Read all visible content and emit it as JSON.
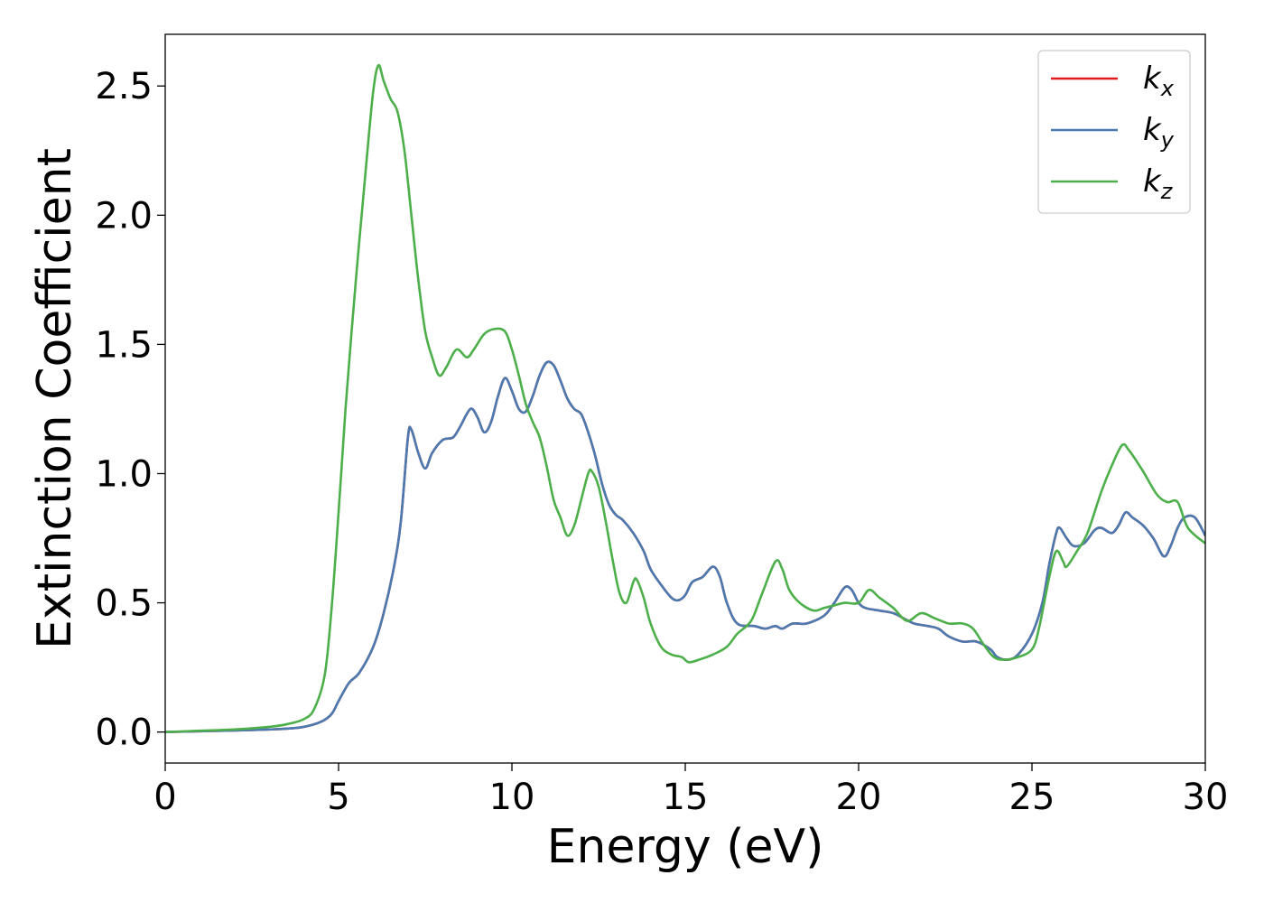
{
  "chart_data": {
    "type": "line",
    "title": "",
    "xlabel": "Energy (eV)",
    "ylabel": "Extinction Coefficient",
    "xlim": [
      0,
      30
    ],
    "ylim": [
      -0.12,
      2.7
    ],
    "xticks": [
      0,
      5,
      10,
      15,
      20,
      25,
      30
    ],
    "xtick_labels": [
      "0",
      "5",
      "10",
      "15",
      "20",
      "25",
      "30"
    ],
    "yticks": [
      0.0,
      0.5,
      1.0,
      1.5,
      2.0,
      2.5
    ],
    "ytick_labels": [
      "0.0",
      "0.5",
      "1.0",
      "1.5",
      "2.0",
      "2.5"
    ],
    "grid": false,
    "legend_position": "top-right",
    "series": [
      {
        "name": "k_x",
        "legend_base": "k",
        "legend_sub": "x",
        "color": "#e41a1c",
        "points": [
          [
            0,
            0
          ],
          [
            1,
            0.003
          ],
          [
            2,
            0.006
          ],
          [
            3,
            0.01
          ],
          [
            3.5,
            0.013
          ],
          [
            4,
            0.02
          ],
          [
            4.5,
            0.04
          ],
          [
            4.8,
            0.07
          ],
          [
            5.0,
            0.12
          ],
          [
            5.3,
            0.19
          ],
          [
            5.6,
            0.23
          ],
          [
            6.0,
            0.33
          ],
          [
            6.3,
            0.46
          ],
          [
            6.6,
            0.64
          ],
          [
            6.8,
            0.82
          ],
          [
            7.0,
            1.14
          ],
          [
            7.1,
            1.17
          ],
          [
            7.3,
            1.08
          ],
          [
            7.5,
            1.02
          ],
          [
            7.7,
            1.08
          ],
          [
            8.0,
            1.13
          ],
          [
            8.3,
            1.14
          ],
          [
            8.5,
            1.18
          ],
          [
            8.8,
            1.25
          ],
          [
            9.0,
            1.22
          ],
          [
            9.2,
            1.16
          ],
          [
            9.4,
            1.2
          ],
          [
            9.6,
            1.3
          ],
          [
            9.8,
            1.37
          ],
          [
            10.0,
            1.32
          ],
          [
            10.2,
            1.25
          ],
          [
            10.4,
            1.24
          ],
          [
            10.6,
            1.3
          ],
          [
            10.8,
            1.38
          ],
          [
            11.0,
            1.43
          ],
          [
            11.2,
            1.42
          ],
          [
            11.4,
            1.36
          ],
          [
            11.6,
            1.29
          ],
          [
            11.8,
            1.25
          ],
          [
            12.0,
            1.23
          ],
          [
            12.2,
            1.16
          ],
          [
            12.4,
            1.07
          ],
          [
            12.6,
            0.96
          ],
          [
            12.8,
            0.88
          ],
          [
            13.0,
            0.84
          ],
          [
            13.2,
            0.82
          ],
          [
            13.5,
            0.77
          ],
          [
            13.8,
            0.7
          ],
          [
            14.0,
            0.63
          ],
          [
            14.3,
            0.57
          ],
          [
            14.6,
            0.52
          ],
          [
            14.8,
            0.51
          ],
          [
            15.0,
            0.53
          ],
          [
            15.2,
            0.58
          ],
          [
            15.5,
            0.6
          ],
          [
            15.8,
            0.64
          ],
          [
            16.0,
            0.6
          ],
          [
            16.2,
            0.5
          ],
          [
            16.5,
            0.42
          ],
          [
            17.0,
            0.41
          ],
          [
            17.3,
            0.4
          ],
          [
            17.6,
            0.41
          ],
          [
            17.8,
            0.4
          ],
          [
            18.1,
            0.42
          ],
          [
            18.5,
            0.42
          ],
          [
            19.0,
            0.45
          ],
          [
            19.3,
            0.5
          ],
          [
            19.6,
            0.56
          ],
          [
            19.8,
            0.55
          ],
          [
            20.0,
            0.5
          ],
          [
            20.2,
            0.48
          ],
          [
            20.6,
            0.47
          ],
          [
            21.0,
            0.46
          ],
          [
            21.3,
            0.44
          ],
          [
            21.6,
            0.42
          ],
          [
            22.0,
            0.41
          ],
          [
            22.3,
            0.4
          ],
          [
            22.6,
            0.37
          ],
          [
            23.0,
            0.35
          ],
          [
            23.4,
            0.35
          ],
          [
            23.8,
            0.32
          ],
          [
            24.0,
            0.29
          ],
          [
            24.3,
            0.28
          ],
          [
            24.6,
            0.3
          ],
          [
            25.0,
            0.38
          ],
          [
            25.3,
            0.5
          ],
          [
            25.5,
            0.65
          ],
          [
            25.7,
            0.77
          ],
          [
            25.8,
            0.79
          ],
          [
            26.0,
            0.75
          ],
          [
            26.2,
            0.72
          ],
          [
            26.5,
            0.73
          ],
          [
            26.8,
            0.78
          ],
          [
            27.0,
            0.79
          ],
          [
            27.3,
            0.77
          ],
          [
            27.5,
            0.8
          ],
          [
            27.7,
            0.85
          ],
          [
            27.9,
            0.83
          ],
          [
            28.2,
            0.8
          ],
          [
            28.5,
            0.75
          ],
          [
            28.8,
            0.68
          ],
          [
            29.0,
            0.72
          ],
          [
            29.2,
            0.79
          ],
          [
            29.4,
            0.83
          ],
          [
            29.7,
            0.83
          ],
          [
            30.0,
            0.76
          ]
        ]
      },
      {
        "name": "k_y",
        "legend_base": "k",
        "legend_sub": "y",
        "color": "#4a7ab0",
        "points": [
          [
            0,
            0
          ],
          [
            1,
            0.003
          ],
          [
            2,
            0.006
          ],
          [
            3,
            0.01
          ],
          [
            3.5,
            0.013
          ],
          [
            4,
            0.02
          ],
          [
            4.5,
            0.04
          ],
          [
            4.8,
            0.07
          ],
          [
            5.0,
            0.12
          ],
          [
            5.3,
            0.19
          ],
          [
            5.6,
            0.23
          ],
          [
            6.0,
            0.33
          ],
          [
            6.3,
            0.46
          ],
          [
            6.6,
            0.64
          ],
          [
            6.8,
            0.82
          ],
          [
            7.0,
            1.14
          ],
          [
            7.1,
            1.17
          ],
          [
            7.3,
            1.08
          ],
          [
            7.5,
            1.02
          ],
          [
            7.7,
            1.08
          ],
          [
            8.0,
            1.13
          ],
          [
            8.3,
            1.14
          ],
          [
            8.5,
            1.18
          ],
          [
            8.8,
            1.25
          ],
          [
            9.0,
            1.22
          ],
          [
            9.2,
            1.16
          ],
          [
            9.4,
            1.2
          ],
          [
            9.6,
            1.3
          ],
          [
            9.8,
            1.37
          ],
          [
            10.0,
            1.32
          ],
          [
            10.2,
            1.25
          ],
          [
            10.4,
            1.24
          ],
          [
            10.6,
            1.3
          ],
          [
            10.8,
            1.38
          ],
          [
            11.0,
            1.43
          ],
          [
            11.2,
            1.42
          ],
          [
            11.4,
            1.36
          ],
          [
            11.6,
            1.29
          ],
          [
            11.8,
            1.25
          ],
          [
            12.0,
            1.23
          ],
          [
            12.2,
            1.16
          ],
          [
            12.4,
            1.07
          ],
          [
            12.6,
            0.96
          ],
          [
            12.8,
            0.88
          ],
          [
            13.0,
            0.84
          ],
          [
            13.2,
            0.82
          ],
          [
            13.5,
            0.77
          ],
          [
            13.8,
            0.7
          ],
          [
            14.0,
            0.63
          ],
          [
            14.3,
            0.57
          ],
          [
            14.6,
            0.52
          ],
          [
            14.8,
            0.51
          ],
          [
            15.0,
            0.53
          ],
          [
            15.2,
            0.58
          ],
          [
            15.5,
            0.6
          ],
          [
            15.8,
            0.64
          ],
          [
            16.0,
            0.6
          ],
          [
            16.2,
            0.5
          ],
          [
            16.5,
            0.42
          ],
          [
            17.0,
            0.41
          ],
          [
            17.3,
            0.4
          ],
          [
            17.6,
            0.41
          ],
          [
            17.8,
            0.4
          ],
          [
            18.1,
            0.42
          ],
          [
            18.5,
            0.42
          ],
          [
            19.0,
            0.45
          ],
          [
            19.3,
            0.5
          ],
          [
            19.6,
            0.56
          ],
          [
            19.8,
            0.55
          ],
          [
            20.0,
            0.5
          ],
          [
            20.2,
            0.48
          ],
          [
            20.6,
            0.47
          ],
          [
            21.0,
            0.46
          ],
          [
            21.3,
            0.44
          ],
          [
            21.6,
            0.42
          ],
          [
            22.0,
            0.41
          ],
          [
            22.3,
            0.4
          ],
          [
            22.6,
            0.37
          ],
          [
            23.0,
            0.35
          ],
          [
            23.4,
            0.35
          ],
          [
            23.8,
            0.32
          ],
          [
            24.0,
            0.29
          ],
          [
            24.3,
            0.28
          ],
          [
            24.6,
            0.3
          ],
          [
            25.0,
            0.38
          ],
          [
            25.3,
            0.5
          ],
          [
            25.5,
            0.65
          ],
          [
            25.7,
            0.77
          ],
          [
            25.8,
            0.79
          ],
          [
            26.0,
            0.75
          ],
          [
            26.2,
            0.72
          ],
          [
            26.5,
            0.73
          ],
          [
            26.8,
            0.78
          ],
          [
            27.0,
            0.79
          ],
          [
            27.3,
            0.77
          ],
          [
            27.5,
            0.8
          ],
          [
            27.7,
            0.85
          ],
          [
            27.9,
            0.83
          ],
          [
            28.2,
            0.8
          ],
          [
            28.5,
            0.75
          ],
          [
            28.8,
            0.68
          ],
          [
            29.0,
            0.72
          ],
          [
            29.2,
            0.79
          ],
          [
            29.4,
            0.83
          ],
          [
            29.7,
            0.83
          ],
          [
            30.0,
            0.76
          ]
        ]
      },
      {
        "name": "k_z",
        "legend_base": "k",
        "legend_sub": "z",
        "color": "#4daf4a",
        "points": [
          [
            0,
            0
          ],
          [
            1,
            0.005
          ],
          [
            2,
            0.01
          ],
          [
            3,
            0.02
          ],
          [
            3.5,
            0.03
          ],
          [
            4,
            0.05
          ],
          [
            4.3,
            0.09
          ],
          [
            4.6,
            0.22
          ],
          [
            4.8,
            0.48
          ],
          [
            5.0,
            0.85
          ],
          [
            5.2,
            1.25
          ],
          [
            5.5,
            1.75
          ],
          [
            5.8,
            2.2
          ],
          [
            6.0,
            2.48
          ],
          [
            6.15,
            2.58
          ],
          [
            6.3,
            2.52
          ],
          [
            6.5,
            2.45
          ],
          [
            6.7,
            2.4
          ],
          [
            6.9,
            2.25
          ],
          [
            7.1,
            2.0
          ],
          [
            7.3,
            1.75
          ],
          [
            7.5,
            1.55
          ],
          [
            7.7,
            1.45
          ],
          [
            7.9,
            1.38
          ],
          [
            8.1,
            1.41
          ],
          [
            8.4,
            1.48
          ],
          [
            8.7,
            1.45
          ],
          [
            8.9,
            1.48
          ],
          [
            9.2,
            1.54
          ],
          [
            9.5,
            1.56
          ],
          [
            9.8,
            1.55
          ],
          [
            10.0,
            1.48
          ],
          [
            10.2,
            1.38
          ],
          [
            10.4,
            1.27
          ],
          [
            10.6,
            1.2
          ],
          [
            10.8,
            1.14
          ],
          [
            11.0,
            1.03
          ],
          [
            11.2,
            0.9
          ],
          [
            11.4,
            0.83
          ],
          [
            11.6,
            0.76
          ],
          [
            11.8,
            0.8
          ],
          [
            12.0,
            0.9
          ],
          [
            12.2,
            1.0
          ],
          [
            12.3,
            1.01
          ],
          [
            12.5,
            0.95
          ],
          [
            12.7,
            0.82
          ],
          [
            12.9,
            0.67
          ],
          [
            13.1,
            0.54
          ],
          [
            13.3,
            0.5
          ],
          [
            13.5,
            0.58
          ],
          [
            13.6,
            0.59
          ],
          [
            13.8,
            0.52
          ],
          [
            14.0,
            0.42
          ],
          [
            14.3,
            0.33
          ],
          [
            14.6,
            0.3
          ],
          [
            14.9,
            0.29
          ],
          [
            15.1,
            0.27
          ],
          [
            15.4,
            0.28
          ],
          [
            15.8,
            0.3
          ],
          [
            16.2,
            0.33
          ],
          [
            16.5,
            0.38
          ],
          [
            16.9,
            0.43
          ],
          [
            17.2,
            0.53
          ],
          [
            17.6,
            0.66
          ],
          [
            17.8,
            0.63
          ],
          [
            18.0,
            0.55
          ],
          [
            18.3,
            0.5
          ],
          [
            18.7,
            0.47
          ],
          [
            19.0,
            0.48
          ],
          [
            19.3,
            0.49
          ],
          [
            19.6,
            0.5
          ],
          [
            20.0,
            0.5
          ],
          [
            20.3,
            0.55
          ],
          [
            20.6,
            0.52
          ],
          [
            21.0,
            0.48
          ],
          [
            21.4,
            0.43
          ],
          [
            21.8,
            0.46
          ],
          [
            22.2,
            0.44
          ],
          [
            22.6,
            0.42
          ],
          [
            23.0,
            0.42
          ],
          [
            23.3,
            0.4
          ],
          [
            23.6,
            0.34
          ],
          [
            23.9,
            0.29
          ],
          [
            24.2,
            0.28
          ],
          [
            24.6,
            0.29
          ],
          [
            25.0,
            0.32
          ],
          [
            25.2,
            0.4
          ],
          [
            25.5,
            0.6
          ],
          [
            25.7,
            0.7
          ],
          [
            25.9,
            0.66
          ],
          [
            26.0,
            0.64
          ],
          [
            26.3,
            0.7
          ],
          [
            26.6,
            0.77
          ],
          [
            27.0,
            0.93
          ],
          [
            27.3,
            1.03
          ],
          [
            27.6,
            1.11
          ],
          [
            27.8,
            1.09
          ],
          [
            28.2,
            1.01
          ],
          [
            28.6,
            0.92
          ],
          [
            28.9,
            0.89
          ],
          [
            29.2,
            0.89
          ],
          [
            29.5,
            0.79
          ],
          [
            30.0,
            0.73
          ]
        ]
      }
    ]
  }
}
